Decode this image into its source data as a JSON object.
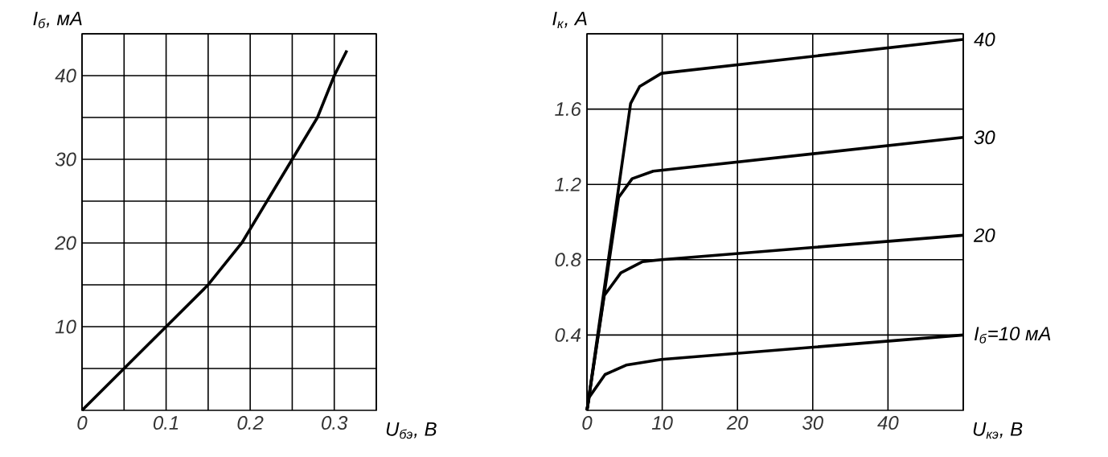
{
  "chart_data": [
    {
      "type": "line",
      "xlabel": "U$_{бэ}$, В",
      "ylabel": "I$_{б}$, мА",
      "color": "#000000",
      "grid": true,
      "x": [
        0,
        0.05,
        0.1,
        0.15,
        0.19,
        0.22,
        0.25,
        0.28,
        0.3,
        0.315
      ],
      "values": [
        0,
        5,
        10,
        15,
        20,
        25,
        30,
        35,
        40,
        43
      ],
      "xlim": [
        0,
        0.35
      ],
      "ylim": [
        0,
        45
      ],
      "xticks": [
        0,
        {
          "value": 0.05,
          "label": null
        },
        0.1,
        {
          "value": 0.15,
          "label": null
        },
        0.2,
        {
          "value": 0.25,
          "label": null
        },
        0.3,
        {
          "value": 0.35,
          "label": null
        }
      ],
      "yticks": [
        {
          "value": 5,
          "label": null
        },
        10,
        {
          "value": 15,
          "label": null
        },
        20,
        {
          "value": 25,
          "label": null
        },
        30,
        {
          "value": 35,
          "label": null
        },
        40,
        {
          "value": 45,
          "label": null
        }
      ]
    },
    {
      "type": "line",
      "xlabel": "U$_{кэ}$, В",
      "ylabel": "I$_{к}$, А",
      "grid": true,
      "xlim": [
        0,
        50
      ],
      "ylim": [
        0,
        2
      ],
      "xticks": [
        0,
        10,
        20,
        30,
        40,
        {
          "value": 50,
          "label": null
        }
      ],
      "yticks": [
        0.4,
        0.8,
        1.2,
        1.6,
        {
          "value": 2,
          "label": null
        }
      ],
      "series": [
        {
          "name": "I$_{б}$=10 мА",
          "color": "#000000",
          "x": [
            0,
            0.3,
            2.4,
            5.2,
            9.9,
            50
          ],
          "values": [
            0,
            0.07,
            0.19,
            0.24,
            0.27,
            0.4
          ]
        },
        {
          "name": "20",
          "color": "#000000",
          "x": [
            0,
            2.3,
            4.5,
            7.4,
            9.9,
            50
          ],
          "values": [
            0,
            0.61,
            0.73,
            0.79,
            0.8,
            0.93
          ]
        },
        {
          "name": "30",
          "color": "#000000",
          "x": [
            0,
            4.2,
            6,
            8.8,
            50
          ],
          "values": [
            0,
            1.13,
            1.23,
            1.27,
            1.45
          ]
        },
        {
          "name": "40",
          "color": "#000000",
          "x": [
            0,
            5.8,
            7,
            9.9,
            50
          ],
          "values": [
            0,
            1.63,
            1.72,
            1.79,
            1.97
          ]
        }
      ]
    }
  ]
}
